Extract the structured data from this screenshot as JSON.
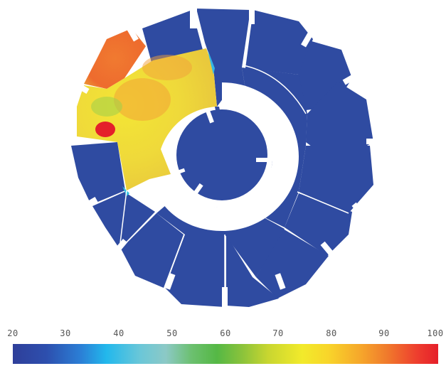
{
  "colormap": {
    "ticks": [
      "20",
      "30",
      "40",
      "50",
      "60",
      "70",
      "80",
      "90",
      "100"
    ],
    "min": 20,
    "max": 100
  },
  "colors": {
    "background": "#ffffff",
    "sector_default": "#2f4ba1",
    "hot_outer": "#ee7a2f",
    "hot_inner": "#eadf3a",
    "hot_spot": "#e4202a",
    "edge_cyan": "#34b6e6"
  }
}
